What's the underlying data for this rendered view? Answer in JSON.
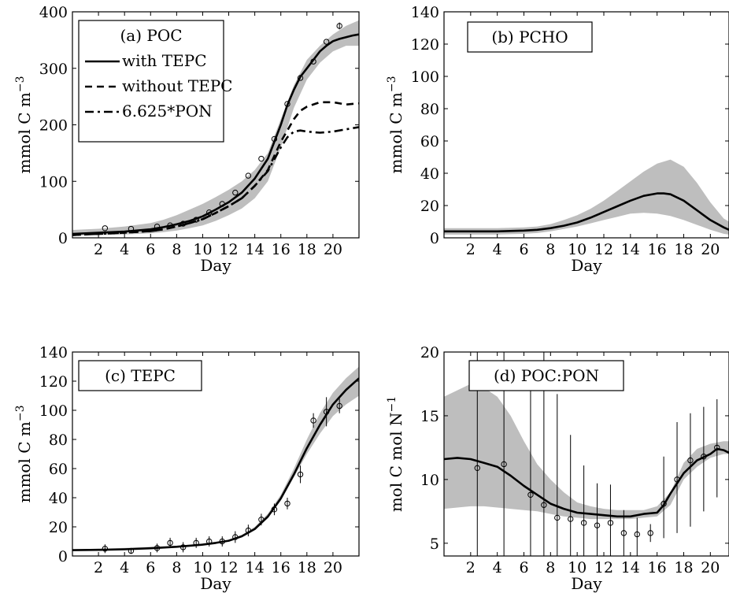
{
  "colors": {
    "band": "#bebebe",
    "line": "#000000",
    "axis": "#000000",
    "background": "#ffffff"
  },
  "chart_data": [
    {
      "type": "line",
      "xlabel": "Day",
      "ylabel": "mmol C m",
      "ylabel_sup": "−3",
      "xlim": [
        0,
        22
      ],
      "ylim": [
        0,
        400
      ],
      "xticks": [
        2,
        4,
        6,
        8,
        10,
        12,
        14,
        16,
        18,
        20
      ],
      "yticks": [
        0,
        100,
        200,
        300,
        400
      ],
      "legend": {
        "position": "top-left",
        "title": "(a) POC",
        "entries": [
          {
            "label": "with TEPC",
            "style": "solid"
          },
          {
            "label": "without TEPC",
            "style": "dashed"
          },
          {
            "label": "6.625*PON",
            "style": "dashdot"
          }
        ]
      },
      "band": {
        "x": [
          0,
          2,
          4,
          6,
          7,
          8,
          9,
          10,
          11,
          12,
          13,
          14,
          15,
          16,
          17,
          18,
          19,
          20,
          21,
          22
        ],
        "lower": [
          4,
          5,
          6,
          8,
          10,
          13,
          17,
          22,
          30,
          40,
          52,
          70,
          100,
          160,
          230,
          280,
          310,
          330,
          340,
          340
        ],
        "upper": [
          14,
          16,
          20,
          26,
          32,
          40,
          50,
          60,
          72,
          85,
          100,
          120,
          150,
          210,
          270,
          315,
          340,
          360,
          375,
          385
        ]
      },
      "series": [
        {
          "name": "with TEPC",
          "style": "solid",
          "x": [
            0,
            2,
            4,
            6,
            7,
            8,
            9,
            10,
            11,
            12,
            13,
            14,
            15,
            16,
            16.5,
            17,
            17.5,
            18,
            18.5,
            19,
            19.5,
            20,
            20.5,
            21,
            21.5,
            22
          ],
          "y": [
            7,
            9,
            11,
            15,
            19,
            24,
            30,
            38,
            50,
            63,
            80,
            105,
            140,
            200,
            235,
            262,
            285,
            300,
            315,
            330,
            340,
            348,
            352,
            355,
            358,
            360
          ]
        },
        {
          "name": "without TEPC",
          "style": "dashed",
          "x": [
            0,
            2,
            4,
            6,
            7,
            8,
            9,
            10,
            11,
            12,
            13,
            14,
            15,
            16,
            16.5,
            17,
            17.5,
            18,
            19,
            20,
            21,
            22
          ],
          "y": [
            5,
            7,
            9,
            12,
            15,
            20,
            26,
            33,
            44,
            56,
            70,
            92,
            120,
            170,
            190,
            210,
            225,
            232,
            240,
            240,
            236,
            238
          ]
        },
        {
          "name": "6.625*PON",
          "style": "dashdot",
          "x": [
            0,
            2,
            4,
            6,
            7,
            8,
            9,
            10,
            11,
            12,
            13,
            14,
            15,
            16,
            16.5,
            17,
            17.5,
            18,
            19,
            20,
            21,
            22
          ],
          "y": [
            5,
            7,
            9,
            12,
            15,
            20,
            26,
            33,
            44,
            56,
            70,
            92,
            118,
            160,
            178,
            188,
            190,
            188,
            186,
            188,
            192,
            196
          ]
        }
      ],
      "observations": {
        "x": [
          2.5,
          4.5,
          6.5,
          7.5,
          8.5,
          9.5,
          10.5,
          11.5,
          12.5,
          13.5,
          14.5,
          15.5,
          16.5,
          17.5,
          18.5,
          19.5,
          20.5
        ],
        "y": [
          17,
          16,
          20,
          22,
          25,
          32,
          45,
          60,
          80,
          110,
          140,
          175,
          237,
          283,
          312,
          347,
          375
        ],
        "err": [
          0,
          0,
          0,
          0,
          0,
          0,
          0,
          0,
          0,
          0,
          0,
          0,
          0,
          0,
          0,
          0,
          6
        ]
      }
    },
    {
      "type": "line",
      "xlabel": "Day",
      "ylabel": "mmol C m",
      "ylabel_sup": "−3",
      "xlim": [
        0,
        21.4
      ],
      "ylim": [
        0,
        140
      ],
      "xticks": [
        2,
        4,
        6,
        8,
        10,
        12,
        14,
        16,
        18,
        20
      ],
      "yticks": [
        0,
        20,
        40,
        60,
        80,
        100,
        120,
        140
      ],
      "legend": {
        "position": "top-left",
        "title": "(b) PCHO",
        "entries": []
      },
      "band": {
        "x": [
          0,
          2,
          4,
          6,
          7,
          8,
          9,
          10,
          11,
          12,
          13,
          14,
          15,
          16,
          17,
          18,
          19,
          20,
          21,
          21.4
        ],
        "lower": [
          2,
          2,
          2,
          2.5,
          3,
          4,
          5.5,
          7,
          9,
          11,
          13,
          15,
          15.5,
          15,
          13.5,
          11,
          8,
          5,
          2.5,
          2
        ],
        "upper": [
          6,
          6,
          6,
          6.5,
          7,
          8.5,
          11,
          14,
          18,
          23,
          29,
          35,
          41,
          46,
          48.5,
          44,
          34,
          22,
          12,
          10
        ]
      },
      "series": [
        {
          "name": "",
          "style": "solid",
          "x": [
            0,
            2,
            4,
            6,
            7,
            8,
            9,
            10,
            11,
            12,
            13,
            14,
            15,
            16,
            16.5,
            17,
            18,
            19,
            20,
            21,
            21.4
          ],
          "y": [
            4,
            4,
            4,
            4.5,
            5,
            6,
            7.5,
            9.5,
            12.5,
            16,
            19.5,
            23,
            26,
            27.5,
            27.5,
            27,
            23,
            17,
            11,
            6.5,
            5
          ]
        }
      ],
      "observations": {
        "x": [],
        "y": [],
        "err": []
      }
    },
    {
      "type": "line",
      "xlabel": "Day",
      "ylabel": "mmol C m",
      "ylabel_sup": "−3",
      "xlim": [
        0,
        22
      ],
      "ylim": [
        0,
        140
      ],
      "xticks": [
        2,
        4,
        6,
        8,
        10,
        12,
        14,
        16,
        18,
        20
      ],
      "yticks": [
        0,
        20,
        40,
        60,
        80,
        100,
        120,
        140
      ],
      "legend": {
        "position": "top-left",
        "title": "(c) TEPC",
        "entries": []
      },
      "band": {
        "x": [
          0,
          4,
          8,
          10,
          12,
          13,
          14,
          15,
          16,
          17,
          18,
          19,
          20,
          21,
          22
        ],
        "lower": [
          3.5,
          4.5,
          6,
          7.5,
          10,
          13,
          18,
          26,
          38,
          54,
          70,
          84,
          96,
          104,
          110
        ],
        "upper": [
          4.5,
          5.5,
          7,
          8.5,
          11,
          14.5,
          20,
          29,
          42,
          60,
          80,
          98,
          112,
          122,
          130
        ]
      },
      "series": [
        {
          "name": "",
          "style": "solid",
          "x": [
            0,
            2,
            4,
            6,
            8,
            10,
            11,
            12,
            13,
            14,
            15,
            16,
            17,
            18,
            19,
            20,
            21,
            22
          ],
          "y": [
            4,
            4.2,
            4.6,
            5.3,
            6.3,
            7.8,
            9,
            10.5,
            13.5,
            18.5,
            27,
            39.5,
            56,
            74,
            90,
            104,
            114,
            122
          ]
        }
      ],
      "observations": {
        "x": [
          2.5,
          4.5,
          6.5,
          7.5,
          8.5,
          9.5,
          10.5,
          11.5,
          12.5,
          13.5,
          14.5,
          15.5,
          16.5,
          17.5,
          18.5,
          19.5,
          20.5
        ],
        "y": [
          5,
          3.5,
          5.5,
          9,
          6,
          9,
          10,
          10,
          13,
          17.5,
          25,
          32,
          36,
          56,
          93,
          99,
          103
        ],
        "err": [
          3,
          2,
          3,
          3.5,
          3.5,
          3.5,
          3.5,
          3.5,
          4,
          4,
          4,
          4,
          4,
          6,
          5,
          10,
          5
        ]
      }
    },
    {
      "type": "line",
      "xlabel": "Day",
      "ylabel": "mol C mol N",
      "ylabel_sup": "−1",
      "xlim": [
        0,
        21.4
      ],
      "ylim": [
        4,
        20
      ],
      "xticks": [
        2,
        4,
        6,
        8,
        10,
        12,
        14,
        16,
        18,
        20
      ],
      "yticks": [
        5,
        10,
        15,
        20
      ],
      "legend": {
        "position": "top-left",
        "title": "(d) POC:PON",
        "entries": []
      },
      "band": {
        "x": [
          0,
          1,
          2,
          3,
          4,
          5,
          6,
          7,
          8,
          9,
          10,
          11,
          12,
          13,
          14,
          15,
          16,
          17,
          18,
          19,
          20,
          21,
          21.4
        ],
        "lower": [
          7.7,
          7.8,
          7.9,
          7.9,
          7.8,
          7.7,
          7.6,
          7.5,
          7.3,
          7.1,
          7.0,
          6.9,
          6.9,
          6.9,
          6.9,
          7.0,
          7.1,
          8.0,
          10.0,
          11.0,
          11.7,
          12.0,
          12.0
        ],
        "upper": [
          16.5,
          17.0,
          17.5,
          17.2,
          16.5,
          15.0,
          13.0,
          11.2,
          10.0,
          9.0,
          8.2,
          7.9,
          7.7,
          7.6,
          7.6,
          7.6,
          7.9,
          9.0,
          11.3,
          12.4,
          12.8,
          13.0,
          13.0
        ]
      },
      "series": [
        {
          "name": "",
          "style": "solid",
          "x": [
            0,
            1,
            2,
            3,
            4,
            5,
            6,
            7,
            8,
            9,
            10,
            11,
            12,
            13,
            14,
            15,
            16,
            16.5,
            17,
            18,
            19,
            20,
            20.5,
            21,
            21.4
          ],
          "y": [
            11.6,
            11.7,
            11.6,
            11.3,
            11.0,
            10.3,
            9.5,
            8.8,
            8.1,
            7.7,
            7.4,
            7.3,
            7.2,
            7.1,
            7.1,
            7.3,
            7.4,
            8.0,
            8.9,
            10.5,
            11.5,
            12.0,
            12.4,
            12.3,
            12.1
          ]
        }
      ],
      "observations": {
        "x": [
          2.5,
          4.5,
          6.5,
          7.5,
          8.5,
          9.5,
          10.5,
          11.5,
          12.5,
          13.5,
          14.5,
          15.5,
          16.5,
          17.5,
          18.5,
          19.5,
          20.5
        ],
        "y": [
          10.9,
          11.2,
          8.8,
          8.0,
          7.0,
          6.9,
          6.6,
          6.4,
          6.6,
          5.8,
          5.7,
          5.8,
          8.1,
          10.0,
          11.5,
          11.8,
          12.5
        ],
        "err": [
          0,
          0,
          0,
          0,
          0,
          0,
          0,
          0,
          0,
          0,
          0,
          0,
          0,
          0,
          0,
          0,
          0
        ],
        "lo": [
          4,
          4,
          4,
          4,
          4,
          4,
          4,
          4,
          4,
          4,
          4,
          5.1,
          5.4,
          5.8,
          6.3,
          7.5,
          8.6
        ],
        "hi": [
          20,
          20,
          17.0,
          20,
          16.7,
          13.5,
          11.1,
          9.7,
          9.6,
          7.6,
          7.0,
          6.5,
          11.8,
          14.5,
          15.2,
          15.7,
          16.3
        ]
      }
    }
  ]
}
